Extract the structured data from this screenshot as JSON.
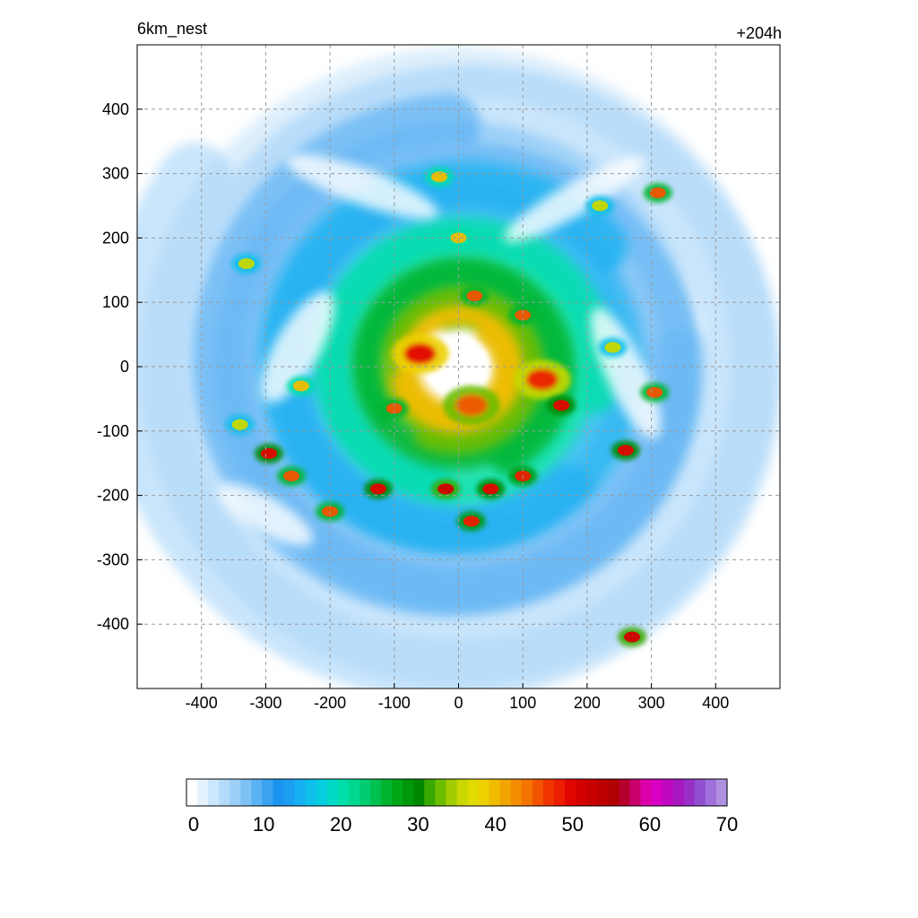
{
  "header": {
    "left_label": "6km_nest",
    "right_label": "+204h"
  },
  "chart_data": {
    "type": "heatmap",
    "title": "",
    "xlabel": "",
    "ylabel": "",
    "xlim": [
      -500,
      500
    ],
    "ylim": [
      -500,
      500
    ],
    "x_ticks": [
      -400,
      -300,
      -200,
      -100,
      0,
      100,
      200,
      300,
      400
    ],
    "y_ticks": [
      400,
      300,
      200,
      100,
      0,
      -100,
      -200,
      -300,
      -400
    ],
    "grid": true,
    "colorbar": {
      "range": [
        0,
        70
      ],
      "ticks": [
        0,
        10,
        20,
        30,
        40,
        50,
        60,
        70
      ],
      "colors": [
        "#ffffff",
        "#e4f2fd",
        "#cce7fb",
        "#b4dbf9",
        "#9ccff7",
        "#7ec2f5",
        "#5ab1f3",
        "#3aa2f1",
        "#1a94ef",
        "#1c9ef0",
        "#16b0f0",
        "#0ec0ea",
        "#06cde0",
        "#00d8c8",
        "#00deaa",
        "#00d890",
        "#00cc70",
        "#00c050",
        "#00b430",
        "#00a818",
        "#009808",
        "#008800",
        "#3aa800",
        "#6cbc00",
        "#a0cc00",
        "#c8d800",
        "#e0dc00",
        "#ecd000",
        "#f0bc00",
        "#f2a400",
        "#f48c00",
        "#f47400",
        "#f25400",
        "#f03400",
        "#ec1c00",
        "#e20600",
        "#d40000",
        "#c80000",
        "#bc0000",
        "#b00000",
        "#b4002a",
        "#c8006c",
        "#dc00aa",
        "#d800c4",
        "#c008c0",
        "#a818c0",
        "#9830c8",
        "#9050d0",
        "#a070dc",
        "#b090e0"
      ]
    },
    "features": [
      {
        "kind": "eye",
        "x": 0,
        "y": 0,
        "value": 0
      },
      {
        "kind": "eyewall",
        "x": -60,
        "y": 20,
        "value": 50
      },
      {
        "kind": "eyewall",
        "x": 20,
        "y": -60,
        "value": 45
      },
      {
        "kind": "eyewall",
        "x": 130,
        "y": -20,
        "value": 48
      },
      {
        "kind": "cell",
        "x": -20,
        "y": -190,
        "value": 52
      },
      {
        "kind": "cell",
        "x": 50,
        "y": -190,
        "value": 50
      },
      {
        "kind": "cell",
        "x": -125,
        "y": -190,
        "value": 50
      },
      {
        "kind": "cell",
        "x": 160,
        "y": -60,
        "value": 50
      },
      {
        "kind": "cell",
        "x": 260,
        "y": -130,
        "value": 50
      },
      {
        "kind": "cell",
        "x": 270,
        "y": -420,
        "value": 52
      },
      {
        "kind": "cell",
        "x": 310,
        "y": 270,
        "value": 45
      },
      {
        "kind": "cell",
        "x": -295,
        "y": -135,
        "value": 50
      },
      {
        "kind": "cell",
        "x": -260,
        "y": -170,
        "value": 45
      },
      {
        "kind": "cell",
        "x": -200,
        "y": -225,
        "value": 45
      },
      {
        "kind": "cell",
        "x": 100,
        "y": -170,
        "value": 48
      },
      {
        "kind": "cell",
        "x": 100,
        "y": 80,
        "value": 45
      },
      {
        "kind": "cell",
        "x": 25,
        "y": 110,
        "value": 45
      },
      {
        "kind": "cell",
        "x": -100,
        "y": -65,
        "value": 45
      },
      {
        "kind": "cell",
        "x": 20,
        "y": -240,
        "value": 48
      },
      {
        "kind": "cell",
        "x": 305,
        "y": -40,
        "value": 45
      },
      {
        "kind": "cell",
        "x": 0,
        "y": 200,
        "value": 40
      },
      {
        "kind": "cell",
        "x": -30,
        "y": 295,
        "value": 40
      },
      {
        "kind": "cell",
        "x": -330,
        "y": 160,
        "value": 35
      },
      {
        "kind": "cell",
        "x": -340,
        "y": -90,
        "value": 35
      },
      {
        "kind": "cell",
        "x": -245,
        "y": -30,
        "value": 40
      },
      {
        "kind": "cell",
        "x": 240,
        "y": 30,
        "value": 35
      },
      {
        "kind": "cell",
        "x": 220,
        "y": 250,
        "value": 35
      }
    ]
  }
}
